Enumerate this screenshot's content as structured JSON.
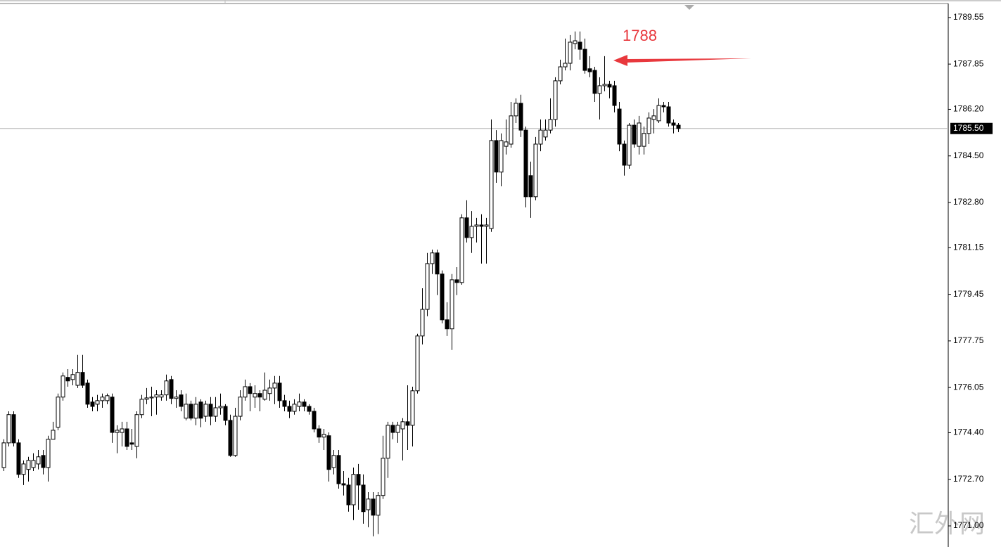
{
  "chart_data": {
    "type": "candlestick",
    "open": [
      1773.13,
      1774.03,
      1775.06,
      1774.03,
      1772.88,
      1773.06,
      1773.13,
      1773.26,
      1773.57,
      1773.13,
      1774.16,
      1774.6,
      1775.7,
      1776.42,
      1776.34,
      1776.13,
      1776.6,
      1776.21,
      1775.52,
      1775.44,
      1775.57,
      1775.57,
      1775.7,
      1774.41,
      1774.41,
      1774.54,
      1774.03,
      1773.9,
      1775.06,
      1775.62,
      1775.67,
      1775.7,
      1775.7,
      1775.78,
      1776.34,
      1775.65,
      1775.78,
      1774.93,
      1775.44,
      1774.93,
      1775.52,
      1775.0,
      1775.44,
      1775.0,
      1775.31,
      1775.36,
      1774.85,
      1773.57,
      1775.0,
      1775.7,
      1776.08,
      1775.7,
      1775.83,
      1775.62,
      1775.83,
      1776.03,
      1776.21,
      1775.57,
      1775.36,
      1775.18,
      1775.36,
      1775.52,
      1775.36,
      1775.18,
      1774.54,
      1774.24,
      1774.29,
      1773.13,
      1773.57,
      1772.54,
      1772.49,
      1771.77,
      1772.88,
      1772.49,
      1771.59,
      1771.98,
      1771.39,
      1772.11,
      1773.47,
      1774.67,
      1774.41,
      1774.54,
      1774.8,
      1774.67,
      1775.93,
      1777.93,
      1778.9,
      1780.57,
      1780.96,
      1780.19,
      1778.52,
      1778.19,
      1779.98,
      1779.88,
      1782.24,
      1781.52,
      1781.93,
      1781.98,
      1781.93,
      1781.85,
      1785.06,
      1783.91,
      1784.85,
      1784.93,
      1785.96,
      1786.42,
      1785.44,
      1783.78,
      1783.01,
      1784.93,
      1785.19,
      1785.44,
      1785.83,
      1787.24,
      1787.75,
      1787.88,
      1788.6,
      1788.65,
      1788.39,
      1787.68,
      1787.62,
      1786.78,
      1787.06,
      1787.11,
      1787.06,
      1786.21,
      1784.93,
      1784.16,
      1785.62,
      1784.85,
      1784.85,
      1785.32,
      1785.83,
      1785.78,
      1786.34,
      1786.29,
      1785.7,
      1785.62
    ],
    "high": [
      1774.16,
      1775.18,
      1775.18,
      1774.16,
      1773.39,
      1773.52,
      1773.65,
      1773.77,
      1773.77,
      1774.29,
      1774.8,
      1775.83,
      1776.6,
      1776.72,
      1776.72,
      1777.24,
      1777.24,
      1776.34,
      1775.7,
      1775.78,
      1775.83,
      1775.83,
      1775.83,
      1774.67,
      1774.8,
      1774.8,
      1774.54,
      1775.18,
      1775.78,
      1776.03,
      1776.08,
      1775.95,
      1775.95,
      1776.52,
      1776.47,
      1775.95,
      1775.95,
      1775.83,
      1775.57,
      1775.7,
      1775.62,
      1775.57,
      1775.7,
      1775.7,
      1775.83,
      1775.44,
      1775.06,
      1775.31,
      1775.95,
      1776.34,
      1776.21,
      1776.13,
      1775.95,
      1776.6,
      1776.34,
      1776.47,
      1776.47,
      1775.78,
      1775.57,
      1775.62,
      1775.83,
      1775.62,
      1775.44,
      1775.31,
      1774.67,
      1774.54,
      1774.41,
      1773.77,
      1773.77,
      1773.0,
      1772.75,
      1773.13,
      1773.26,
      1772.88,
      1772.23,
      1772.23,
      1772.23,
      1774.29,
      1774.8,
      1774.8,
      1774.8,
      1774.93,
      1776.13,
      1776.08,
      1778.01,
      1779.67,
      1780.96,
      1781.08,
      1781.08,
      1780.32,
      1779.16,
      1780.19,
      1780.44,
      1782.37,
      1782.88,
      1782.49,
      1782.24,
      1782.37,
      1782.24,
      1785.83,
      1785.44,
      1785.32,
      1785.83,
      1786.47,
      1786.6,
      1786.73,
      1785.57,
      1784.29,
      1785.19,
      1785.83,
      1785.83,
      1786.6,
      1787.37,
      1788.01,
      1788.78,
      1788.91,
      1789.04,
      1789.04,
      1788.78,
      1788.14,
      1787.75,
      1787.37,
      1788.14,
      1787.24,
      1787.24,
      1786.47,
      1785.06,
      1785.7,
      1785.83,
      1785.96,
      1785.57,
      1786.09,
      1786.21,
      1786.6,
      1786.47,
      1786.47,
      1785.83,
      1785.7
    ],
    "low": [
      1773.0,
      1773.9,
      1773.9,
      1772.75,
      1772.49,
      1772.62,
      1773.0,
      1773.06,
      1772.88,
      1772.62,
      1774.16,
      1774.49,
      1775.57,
      1776.08,
      1776.13,
      1776.03,
      1776.03,
      1775.31,
      1775.18,
      1775.18,
      1775.31,
      1775.44,
      1774.03,
      1773.65,
      1773.9,
      1773.77,
      1773.77,
      1773.47,
      1774.93,
      1775.44,
      1775.0,
      1775.06,
      1775.57,
      1775.57,
      1775.44,
      1775.31,
      1775.18,
      1774.85,
      1774.85,
      1774.67,
      1774.6,
      1774.8,
      1774.67,
      1774.8,
      1775.06,
      1774.67,
      1773.52,
      1773.52,
      1774.85,
      1775.57,
      1775.18,
      1775.31,
      1775.18,
      1775.57,
      1775.57,
      1775.44,
      1775.31,
      1775.18,
      1774.93,
      1775.06,
      1775.18,
      1775.18,
      1775.06,
      1774.41,
      1774.03,
      1773.77,
      1772.62,
      1772.88,
      1772.36,
      1772.11,
      1771.52,
      1771.21,
      1771.59,
      1771.08,
      1770.95,
      1770.62,
      1770.7,
      1771.98,
      1772.75,
      1774.16,
      1774.03,
      1773.39,
      1773.77,
      1773.9,
      1775.83,
      1777.62,
      1778.65,
      1780.19,
      1779.42,
      1778.39,
      1777.93,
      1777.42,
      1779.42,
      1779.8,
      1781.34,
      1780.96,
      1781.34,
      1780.57,
      1780.57,
      1781.73,
      1783.52,
      1783.39,
      1784.55,
      1784.8,
      1785.7,
      1785.19,
      1782.62,
      1782.24,
      1782.88,
      1784.67,
      1785.06,
      1785.32,
      1785.57,
      1787.11,
      1787.62,
      1787.62,
      1788.39,
      1788.01,
      1787.5,
      1787.37,
      1786.47,
      1785.83,
      1786.86,
      1786.6,
      1786.09,
      1784.67,
      1783.78,
      1784.03,
      1784.8,
      1784.55,
      1784.55,
      1784.93,
      1785.32,
      1785.7,
      1786.09,
      1785.57,
      1785.32,
      1785.37
    ],
    "close": [
      1774.03,
      1775.06,
      1774.03,
      1772.88,
      1773.26,
      1773.39,
      1773.39,
      1773.52,
      1773.13,
      1774.16,
      1774.49,
      1775.7,
      1776.47,
      1776.29,
      1776.52,
      1776.6,
      1776.13,
      1775.44,
      1775.36,
      1775.57,
      1775.7,
      1775.75,
      1774.41,
      1774.49,
      1774.54,
      1773.9,
      1773.98,
      1775.06,
      1775.62,
      1775.67,
      1775.7,
      1775.78,
      1775.78,
      1776.29,
      1775.65,
      1775.7,
      1775.36,
      1775.44,
      1774.93,
      1775.44,
      1774.93,
      1775.44,
      1775.0,
      1775.31,
      1775.36,
      1774.85,
      1773.57,
      1775.0,
      1775.7,
      1776.08,
      1775.83,
      1775.83,
      1775.7,
      1775.95,
      1776.03,
      1776.21,
      1775.57,
      1775.36,
      1775.18,
      1775.44,
      1775.52,
      1775.36,
      1775.18,
      1774.54,
      1774.24,
      1774.34,
      1773.06,
      1773.57,
      1772.54,
      1772.49,
      1771.77,
      1772.88,
      1772.49,
      1771.52,
      1771.98,
      1771.39,
      1772.11,
      1773.47,
      1774.67,
      1774.41,
      1774.67,
      1774.8,
      1774.67,
      1775.93,
      1777.93,
      1778.9,
      1780.57,
      1780.96,
      1780.19,
      1778.52,
      1778.19,
      1779.98,
      1779.88,
      1782.24,
      1781.52,
      1781.93,
      1781.98,
      1781.93,
      1781.98,
      1785.06,
      1783.91,
      1785.06,
      1785.01,
      1785.96,
      1786.42,
      1785.44,
      1783.01,
      1783.01,
      1784.93,
      1785.44,
      1785.44,
      1785.83,
      1787.24,
      1787.75,
      1787.88,
      1788.65,
      1788.7,
      1788.39,
      1787.62,
      1787.57,
      1786.78,
      1787.06,
      1787.11,
      1787.01,
      1786.34,
      1784.93,
      1784.16,
      1785.62,
      1784.93,
      1785.7,
      1785.32,
      1785.88,
      1785.96,
      1786.34,
      1786.29,
      1785.7,
      1785.62,
      1785.5
    ],
    "up_color": "#ffffff",
    "down_color": "#000000",
    "ylim": [
      1770.23,
      1790.06
    ],
    "yticks": [
      {
        "value": 1789.55,
        "label": "1789.55"
      },
      {
        "value": 1787.85,
        "label": "1787.85"
      },
      {
        "value": 1786.2,
        "label": "1786.20"
      },
      {
        "value": 1784.5,
        "label": "1784.50"
      },
      {
        "value": 1782.8,
        "label": "1782.80"
      },
      {
        "value": 1781.15,
        "label": "1781.15"
      },
      {
        "value": 1779.45,
        "label": "1779.45"
      },
      {
        "value": 1777.75,
        "label": "1777.75"
      },
      {
        "value": 1776.05,
        "label": "1776.05"
      },
      {
        "value": 1774.4,
        "label": "1774.40"
      },
      {
        "value": 1772.7,
        "label": "1772.70"
      },
      {
        "value": 1771.0,
        "label": "1771.00"
      }
    ],
    "current_price": {
      "value": 1785.5,
      "label": "1785.50"
    },
    "annotation": "1788",
    "watermark": "汇外网"
  }
}
